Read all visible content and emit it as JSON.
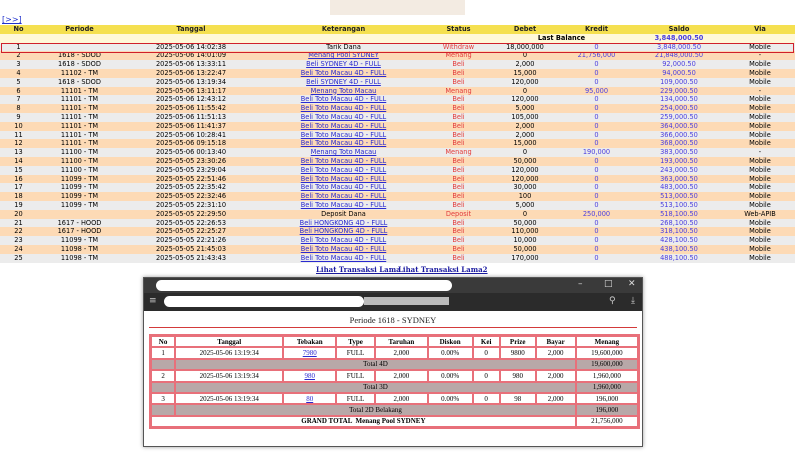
{
  "nav": {
    "next": "[>>]"
  },
  "main": {
    "headers": [
      "No",
      "Periode",
      "Tanggal",
      "Keterangan",
      "Status",
      "Debet",
      "Kredit",
      "Saldo",
      "Via"
    ],
    "last_balance_label": "Last Balance",
    "last_balance_value": "3,848,000.50",
    "rows": [
      {
        "no": "1",
        "periode": "",
        "tanggal": "2025-05-06 14:02:38",
        "ket": "Tarik Dana",
        "link": false,
        "status": "Withdraw",
        "debet": "18,000,000",
        "kredit": "0",
        "saldo": "3,848,000.50",
        "via": "Mobile"
      },
      {
        "no": "2",
        "periode": "1618 - SDOD",
        "tanggal": "2025-05-06 14:01:09",
        "ket": "Menang Pool SYDNEY",
        "link": true,
        "status": "Menang",
        "debet": "0",
        "kredit": "21,756,000",
        "saldo": "21,848,000.50",
        "via": "-"
      },
      {
        "no": "3",
        "periode": "1618 - SDOD",
        "tanggal": "2025-05-06 13:33:11",
        "ket": "Beli SYDNEY 4D - FULL",
        "link": true,
        "status": "Beli",
        "debet": "2,000",
        "kredit": "0",
        "saldo": "92,000.50",
        "via": "Mobile"
      },
      {
        "no": "4",
        "periode": "11102 - TM",
        "tanggal": "2025-05-06 13:22:47",
        "ket": "Beli Toto Macau 4D - FULL",
        "link": true,
        "status": "Beli",
        "debet": "15,000",
        "kredit": "0",
        "saldo": "94,000.50",
        "via": "Mobile"
      },
      {
        "no": "5",
        "periode": "1618 - SDOD",
        "tanggal": "2025-05-06 13:19:34",
        "ket": "Beli SYDNEY 4D - FULL",
        "link": true,
        "status": "Beli",
        "debet": "120,000",
        "kredit": "0",
        "saldo": "109,000.50",
        "via": "Mobile"
      },
      {
        "no": "6",
        "periode": "11101 - TM",
        "tanggal": "2025-05-06 13:11:17",
        "ket": "Menang Toto Macau",
        "link": true,
        "status": "Menang",
        "debet": "0",
        "kredit": "95,000",
        "saldo": "229,000.50",
        "via": "-"
      },
      {
        "no": "7",
        "periode": "11101 - TM",
        "tanggal": "2025-05-06 12:43:12",
        "ket": "Beli Toto Macau 4D - FULL",
        "link": true,
        "status": "Beli",
        "debet": "120,000",
        "kredit": "0",
        "saldo": "134,000.50",
        "via": "Mobile"
      },
      {
        "no": "8",
        "periode": "11101 - TM",
        "tanggal": "2025-05-06 11:55:42",
        "ket": "Beli Toto Macau 4D - FULL",
        "link": true,
        "status": "Beli",
        "debet": "5,000",
        "kredit": "0",
        "saldo": "254,000.50",
        "via": "Mobile"
      },
      {
        "no": "9",
        "periode": "11101 - TM",
        "tanggal": "2025-05-06 11:51:13",
        "ket": "Beli Toto Macau 4D - FULL",
        "link": true,
        "status": "Beli",
        "debet": "105,000",
        "kredit": "0",
        "saldo": "259,000.50",
        "via": "Mobile"
      },
      {
        "no": "10",
        "periode": "11101 - TM",
        "tanggal": "2025-05-06 11:41:37",
        "ket": "Beli Toto Macau 4D - FULL",
        "link": true,
        "status": "Beli",
        "debet": "2,000",
        "kredit": "0",
        "saldo": "364,000.50",
        "via": "Mobile"
      },
      {
        "no": "11",
        "periode": "11101 - TM",
        "tanggal": "2025-05-06 10:28:41",
        "ket": "Beli Toto Macau 4D - FULL",
        "link": true,
        "status": "Beli",
        "debet": "2,000",
        "kredit": "0",
        "saldo": "366,000.50",
        "via": "Mobile"
      },
      {
        "no": "12",
        "periode": "11101 - TM",
        "tanggal": "2025-05-06 09:15:18",
        "ket": "Beli Toto Macau 4D - FULL",
        "link": true,
        "status": "Beli",
        "debet": "15,000",
        "kredit": "0",
        "saldo": "368,000.50",
        "via": "Mobile"
      },
      {
        "no": "13",
        "periode": "11100 - TM",
        "tanggal": "2025-05-06 00:13:40",
        "ket": "Menang Toto Macau",
        "link": true,
        "status": "Menang",
        "debet": "0",
        "kredit": "190,000",
        "saldo": "383,000.50",
        "via": "-"
      },
      {
        "no": "14",
        "periode": "11100 - TM",
        "tanggal": "2025-05-05 23:30:26",
        "ket": "Beli Toto Macau 4D - FULL",
        "link": true,
        "status": "Beli",
        "debet": "50,000",
        "kredit": "0",
        "saldo": "193,000.50",
        "via": "Mobile"
      },
      {
        "no": "15",
        "periode": "11100 - TM",
        "tanggal": "2025-05-05 23:29:04",
        "ket": "Beli Toto Macau 4D - FULL",
        "link": true,
        "status": "Beli",
        "debet": "120,000",
        "kredit": "0",
        "saldo": "243,000.50",
        "via": "Mobile"
      },
      {
        "no": "16",
        "periode": "11099 - TM",
        "tanggal": "2025-05-05 22:51:46",
        "ket": "Beli Toto Macau 4D - FULL",
        "link": true,
        "status": "Beli",
        "debet": "120,000",
        "kredit": "0",
        "saldo": "363,000.50",
        "via": "Mobile"
      },
      {
        "no": "17",
        "periode": "11099 - TM",
        "tanggal": "2025-05-05 22:35:42",
        "ket": "Beli Toto Macau 4D - FULL",
        "link": true,
        "status": "Beli",
        "debet": "30,000",
        "kredit": "0",
        "saldo": "483,000.50",
        "via": "Mobile"
      },
      {
        "no": "18",
        "periode": "11099 - TM",
        "tanggal": "2025-05-05 22:32:46",
        "ket": "Beli Toto Macau 4D - FULL",
        "link": true,
        "status": "Beli",
        "debet": "100",
        "kredit": "0",
        "saldo": "513,000.50",
        "via": "Mobile"
      },
      {
        "no": "19",
        "periode": "11099 - TM",
        "tanggal": "2025-05-05 22:31:10",
        "ket": "Beli Toto Macau 4D - FULL",
        "link": true,
        "status": "Beli",
        "debet": "5,000",
        "kredit": "0",
        "saldo": "513,100.50",
        "via": "Mobile"
      },
      {
        "no": "20",
        "periode": "",
        "tanggal": "2025-05-05 22:29:50",
        "ket": "Deposit Dana",
        "link": false,
        "status": "Deposit",
        "debet": "0",
        "kredit": "250,000",
        "saldo": "518,100.50",
        "via": "Web-APIB"
      },
      {
        "no": "21",
        "periode": "1617 - HOOD",
        "tanggal": "2025-05-05 22:26:53",
        "ket": "Beli HONGKONG 4D - FULL",
        "link": true,
        "status": "Beli",
        "debet": "50,000",
        "kredit": "0",
        "saldo": "268,100.50",
        "via": "Mobile"
      },
      {
        "no": "22",
        "periode": "1617 - HOOD",
        "tanggal": "2025-05-05 22:25:27",
        "ket": "Beli HONGKONG 4D - FULL",
        "link": true,
        "status": "Beli",
        "debet": "110,000",
        "kredit": "0",
        "saldo": "318,100.50",
        "via": "Mobile"
      },
      {
        "no": "23",
        "periode": "11099 - TM",
        "tanggal": "2025-05-05 22:21:26",
        "ket": "Beli Toto Macau 4D - FULL",
        "link": true,
        "status": "Beli",
        "debet": "10,000",
        "kredit": "0",
        "saldo": "428,100.50",
        "via": "Mobile"
      },
      {
        "no": "24",
        "periode": "11098 - TM",
        "tanggal": "2025-05-05 21:45:03",
        "ket": "Beli Toto Macau 4D - FULL",
        "link": true,
        "status": "Beli",
        "debet": "50,000",
        "kredit": "0",
        "saldo": "438,100.50",
        "via": "Mobile"
      },
      {
        "no": "25",
        "periode": "11098 - TM",
        "tanggal": "2025-05-05 21:43:43",
        "ket": "Beli Toto Macau 4D - FULL",
        "link": true,
        "status": "Beli",
        "debet": "170,000",
        "kredit": "0",
        "saldo": "488,100.50",
        "via": "Mobile"
      }
    ],
    "lihat1": "Lihat Transaksi Lama",
    "lihat2": "Lihat Transaksi Lama2"
  },
  "popup": {
    "title": "Periode 1618 - SYDNEY",
    "headers": [
      "No",
      "Tanggal",
      "Tebakan",
      "Type",
      "Taruhan",
      "Diskon",
      "Kei",
      "Prize",
      "Bayar",
      "Menang"
    ],
    "rows": [
      {
        "no": "1",
        "tanggal": "2025-05-06 13:19:34",
        "tebakan": "7980",
        "type": "FULL",
        "taruhan": "2,000",
        "diskon": "0.00%",
        "kei": "0",
        "prize": "9800",
        "bayar": "2,000",
        "menang": "19,600,000",
        "total_label": "Total 4D",
        "total": "19,600,000"
      },
      {
        "no": "2",
        "tanggal": "2025-05-06 13:19:34",
        "tebakan": "980",
        "type": "FULL",
        "taruhan": "2,000",
        "diskon": "0.00%",
        "kei": "0",
        "prize": "980",
        "bayar": "2,000",
        "menang": "1,960,000",
        "total_label": "Total 3D",
        "total": "1,960,000"
      },
      {
        "no": "3",
        "tanggal": "2025-05-06 13:19:34",
        "tebakan": "80",
        "type": "FULL",
        "taruhan": "2,000",
        "diskon": "0.00%",
        "kei": "0",
        "prize": "98",
        "bayar": "2,000",
        "menang": "196,000",
        "total_label": "Total 2D Belakang",
        "total": "196,000"
      }
    ],
    "grand_total_label": "GRAND TOTAL  Menang Pool SYDNEY",
    "grand_total": "21,756,000"
  },
  "colors": {
    "header": "#f5e050",
    "row_odd": "#ececec",
    "row_even": "#fddab5",
    "status": "#e23b3b",
    "accent": "#4a3ee0",
    "selection": "#d0202a"
  }
}
